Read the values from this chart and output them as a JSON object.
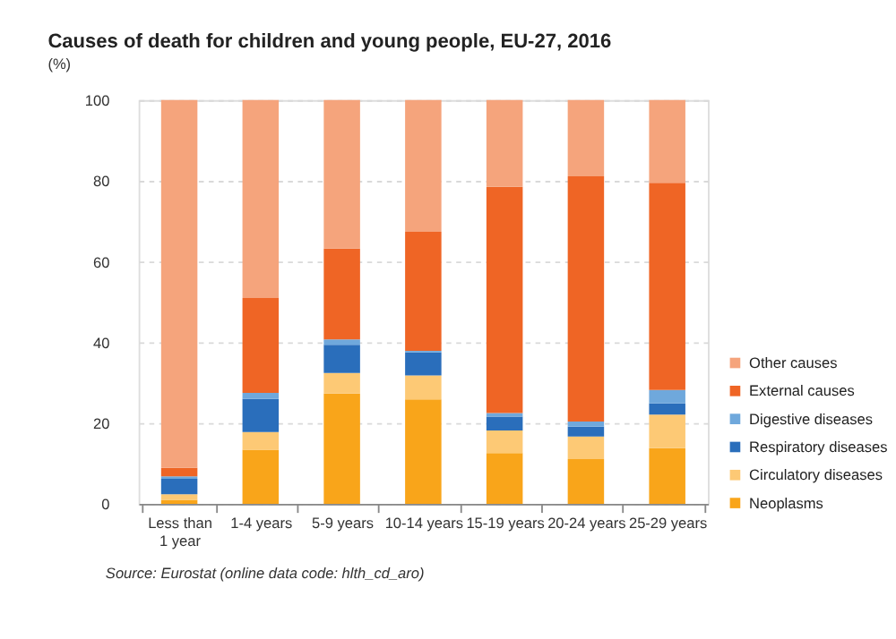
{
  "chart_data": {
    "type": "bar",
    "title": "Causes of death for children and young people, EU-27, 2016",
    "subtitle": "(%)",
    "categories": [
      "Less than 1 year",
      "1-4 years",
      "5-9  years",
      "10-14 years",
      "15-19 years",
      "20-24 years",
      "25-29 years"
    ],
    "stacked": true,
    "ylim": [
      0,
      100
    ],
    "yticks": [
      0,
      20,
      40,
      60,
      80,
      100
    ],
    "grid": "y",
    "legend": "bottom right",
    "series": [
      {
        "name": "Neoplasms",
        "color": "#f9a51a",
        "values": [
          1.0,
          13.4,
          27.3,
          25.9,
          12.6,
          11.1,
          13.8
        ]
      },
      {
        "name": "Circulatory diseases",
        "color": "#fdc975",
        "values": [
          1.4,
          4.4,
          5.1,
          5.9,
          5.6,
          5.6,
          8.3
        ]
      },
      {
        "name": "Respiratory diseases",
        "color": "#2a6ebb",
        "values": [
          3.8,
          8.2,
          7.0,
          5.7,
          3.4,
          2.4,
          2.8
        ]
      },
      {
        "name": "Digestive diseases",
        "color": "#6fa8dc",
        "values": [
          0.6,
          1.5,
          1.3,
          0.4,
          0.9,
          1.3,
          3.3
        ]
      },
      {
        "name": "External causes",
        "color": "#ef6525",
        "values": [
          2.1,
          23.5,
          22.5,
          29.5,
          56.0,
          60.7,
          51.3
        ]
      },
      {
        "name": "Other causes",
        "color": "#f5a47c",
        "values": [
          91.1,
          49.0,
          36.8,
          32.6,
          21.5,
          18.9,
          20.5
        ]
      }
    ],
    "annotations": [
      "Source: Eurostat (online data code: hlth_cd_aro)"
    ]
  }
}
